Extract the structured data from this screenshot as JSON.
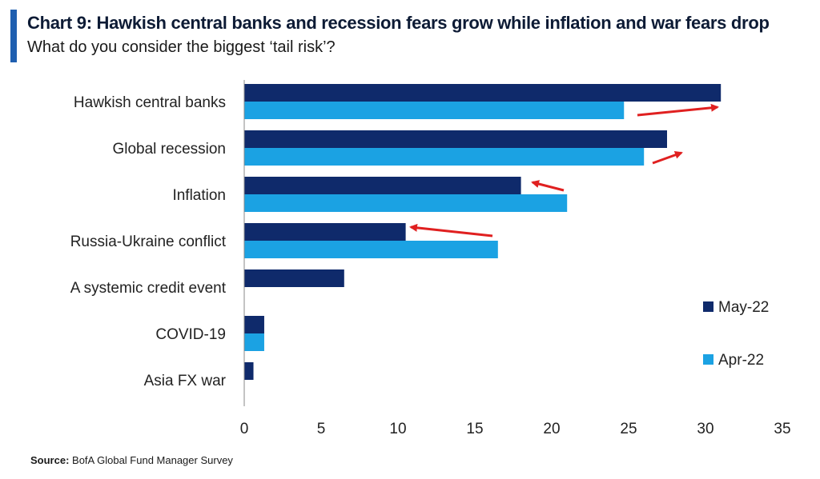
{
  "header": {
    "title": "Chart 9: Hawkish central banks and recession fears grow while inflation and war fears drop",
    "subtitle": "What do you consider the biggest ‘tail risk’?"
  },
  "footer": {
    "source_label": "Source:",
    "source_text": "BofA Global Fund Manager Survey"
  },
  "colors": {
    "may": "#0f2a6b",
    "apr": "#1ba2e3",
    "arrow": "#e02020",
    "accent": "#1f5fb0"
  },
  "chart_data": {
    "type": "bar",
    "orientation": "horizontal",
    "categories": [
      "Hawkish central banks",
      "Global recession",
      "Inflation",
      "Russia-Ukraine conflict",
      "A systemic credit event",
      "COVID-19",
      "Asia FX war"
    ],
    "series": [
      {
        "name": "May-22",
        "values": [
          31,
          27.5,
          18,
          10.5,
          6.5,
          1.3,
          0.6
        ]
      },
      {
        "name": "Apr-22",
        "values": [
          24.7,
          26,
          21,
          16.5,
          null,
          1.3,
          null
        ]
      }
    ],
    "xlim": [
      0,
      35
    ],
    "xticks": [
      0,
      5,
      10,
      15,
      20,
      25,
      30,
      35
    ],
    "grid": false,
    "legend": "right",
    "annotations": "red arrows showing change from Apr-22 to May-22"
  }
}
